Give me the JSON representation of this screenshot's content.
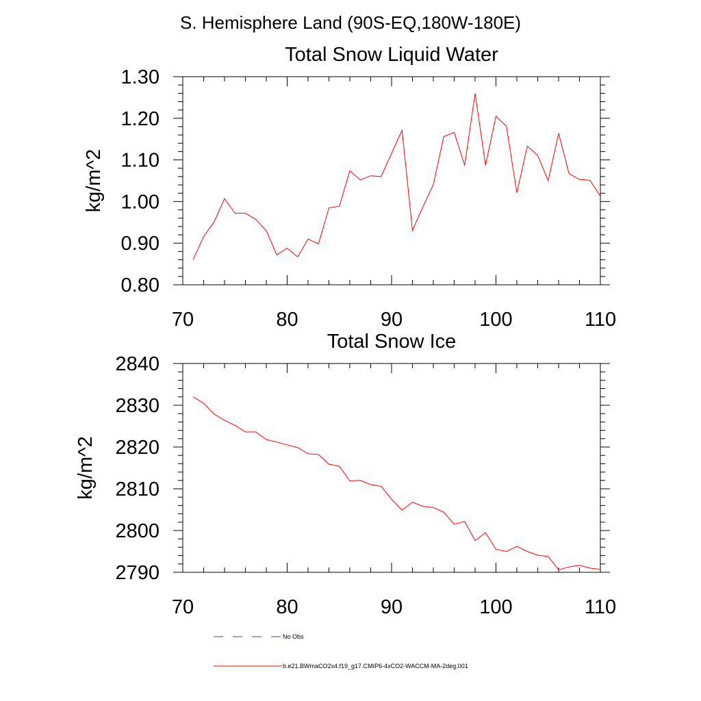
{
  "figure": {
    "region_title": "S. Hemisphere Land (90S-EQ,180W-180E)"
  },
  "colors": {
    "series": "#ff0000",
    "obs": "#3b3bb8",
    "axis": "#000000"
  },
  "legend": {
    "obs_label": "No Obs",
    "model_label": "b.e21.BWmaCO2x4.f19_g17.CMIP6-4xCO2-WACCM-MA-2deg.001"
  },
  "chart_data": [
    {
      "type": "line",
      "title": "Total Snow Liquid Water",
      "ylabel": "kg/m^2",
      "xlabel": "",
      "xlim": [
        70,
        110
      ],
      "ylim": [
        0.8,
        1.3
      ],
      "xticks": [
        "70",
        "80",
        "90",
        "100",
        "110"
      ],
      "yticks": [
        "0.80",
        "0.90",
        "1.00",
        "1.10",
        "1.20",
        "1.30"
      ],
      "grid": false,
      "series": [
        {
          "name": "b.e21.BWmaCO2x4.f19_g17.CMIP6-4xCO2-WACCM-MA-2deg.001",
          "x": [
            71,
            72,
            73,
            74,
            75,
            76,
            77,
            78,
            79,
            80,
            81,
            82,
            83,
            84,
            85,
            86,
            87,
            88,
            89,
            90,
            91,
            92,
            93,
            94,
            95,
            96,
            97,
            98,
            99,
            100,
            101,
            102,
            103,
            104,
            105,
            106,
            107,
            108,
            109,
            110
          ],
          "values": [
            0.861,
            0.916,
            0.951,
            1.007,
            0.972,
            0.972,
            0.957,
            0.93,
            0.872,
            0.888,
            0.867,
            0.91,
            0.898,
            0.985,
            0.989,
            1.074,
            1.052,
            1.062,
            1.06,
            1.116,
            1.171,
            0.931,
            0.987,
            1.041,
            1.156,
            1.166,
            1.087,
            1.26,
            1.087,
            1.205,
            1.181,
            1.021,
            1.133,
            1.111,
            1.05,
            1.164,
            1.067,
            1.053,
            1.051,
            1.013
          ]
        }
      ]
    },
    {
      "type": "line",
      "title": "Total Snow Ice",
      "ylabel": "kg/m^2",
      "xlabel": "",
      "xlim": [
        70,
        110
      ],
      "ylim": [
        2790,
        2840
      ],
      "xticks": [
        "70",
        "80",
        "90",
        "100",
        "110"
      ],
      "yticks": [
        "2790",
        "2800",
        "2810",
        "2820",
        "2830",
        "2840"
      ],
      "grid": false,
      "series": [
        {
          "name": "b.e21.BWmaCO2x4.f19_g17.CMIP6-4xCO2-WACCM-MA-2deg.001",
          "x": [
            71,
            72,
            73,
            74,
            75,
            76,
            77,
            78,
            79,
            80,
            81,
            82,
            83,
            84,
            85,
            86,
            87,
            88,
            89,
            90,
            91,
            92,
            93,
            94,
            95,
            96,
            97,
            98,
            99,
            100,
            101,
            102,
            103,
            104,
            105,
            106,
            107,
            108,
            109,
            110
          ],
          "values": [
            2832.0,
            2830.5,
            2827.9,
            2826.4,
            2825.2,
            2823.6,
            2823.6,
            2821.8,
            2821.2,
            2820.5,
            2819.9,
            2818.4,
            2818.2,
            2815.9,
            2815.4,
            2811.9,
            2812.0,
            2811.0,
            2810.6,
            2807.5,
            2804.9,
            2806.8,
            2805.8,
            2805.5,
            2804.4,
            2801.5,
            2802.2,
            2797.6,
            2799.5,
            2795.5,
            2795.0,
            2796.2,
            2795.0,
            2794.1,
            2793.8,
            2790.6,
            2791.3,
            2791.7,
            2791.0,
            2790.7
          ]
        }
      ]
    }
  ]
}
